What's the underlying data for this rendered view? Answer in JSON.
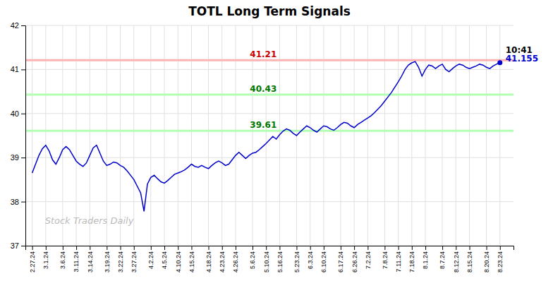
{
  "chart_data": {
    "type": "line",
    "title": "TOTL Long Term Signals",
    "color": "#0000cc",
    "grid": true,
    "ylim": [
      37,
      42
    ],
    "yticks": [
      37,
      38,
      39,
      40,
      41,
      42
    ],
    "watermark": "Stock Traders Daily",
    "reference_lines": [
      {
        "value": 41.21,
        "label": "41.21",
        "color": "#ffb3b3",
        "label_color": "#cc0000"
      },
      {
        "value": 40.43,
        "label": "40.43",
        "color": "#b3ffb3",
        "label_color": "#007700"
      },
      {
        "value": 39.61,
        "label": "39.61",
        "color": "#b3ffb3",
        "label_color": "#007700"
      }
    ],
    "annotations": [
      {
        "text": "10:41",
        "color": "#000000"
      },
      {
        "text": "41.155",
        "color": "#0000cc"
      }
    ],
    "categories": [
      "2.27.24",
      null,
      null,
      null,
      "3.1.24",
      null,
      null,
      null,
      null,
      "3.6.24",
      null,
      null,
      null,
      "3.11.24",
      null,
      null,
      null,
      "3.14.24",
      null,
      null,
      null,
      null,
      "3.19.24",
      null,
      null,
      null,
      "3.22.24",
      null,
      null,
      null,
      "3.27.24",
      null,
      null,
      null,
      null,
      "4.2.24",
      null,
      null,
      null,
      "4.5.24",
      null,
      null,
      null,
      "4.10.24",
      null,
      null,
      null,
      "4.15.24",
      null,
      null,
      null,
      null,
      "4.18.24",
      null,
      null,
      null,
      "4.23.24",
      null,
      null,
      null,
      "4.26.24",
      null,
      null,
      null,
      null,
      "5.6.24",
      null,
      null,
      null,
      "5.10.24",
      null,
      null,
      null,
      "5.16.24",
      null,
      null,
      null,
      null,
      "5.23.24",
      null,
      null,
      null,
      "6.3.24",
      null,
      null,
      null,
      "6.10.24",
      null,
      null,
      null,
      null,
      "6.17.24",
      null,
      null,
      null,
      "6.26.24",
      null,
      null,
      null,
      "7.2.24",
      null,
      null,
      null,
      null,
      "7.8.24",
      null,
      null,
      null,
      "7.11.24",
      null,
      null,
      null,
      "7.18.24",
      null,
      null,
      null,
      "8.1.24",
      null,
      null,
      null,
      null,
      "8.7.24",
      null,
      null,
      null,
      "8.12.24",
      null,
      null,
      null,
      "8.15.24",
      null,
      null,
      null,
      null,
      "8.20.24",
      null,
      null,
      null,
      "8.23.24"
    ],
    "values": [
      38.65,
      38.85,
      39.05,
      39.2,
      39.28,
      39.15,
      38.95,
      38.85,
      39.0,
      39.18,
      39.25,
      39.18,
      39.05,
      38.92,
      38.85,
      38.8,
      38.88,
      39.05,
      39.22,
      39.28,
      39.1,
      38.92,
      38.82,
      38.85,
      38.9,
      38.88,
      38.82,
      38.78,
      38.7,
      38.6,
      38.5,
      38.35,
      38.2,
      37.78,
      38.4,
      38.55,
      38.6,
      38.52,
      38.45,
      38.42,
      38.48,
      38.55,
      38.62,
      38.65,
      38.68,
      38.72,
      38.78,
      38.85,
      38.8,
      38.78,
      38.82,
      38.78,
      38.75,
      38.82,
      38.88,
      38.92,
      38.88,
      38.82,
      38.85,
      38.95,
      39.05,
      39.12,
      39.05,
      38.98,
      39.05,
      39.1,
      39.12,
      39.18,
      39.25,
      39.32,
      39.4,
      39.48,
      39.42,
      39.52,
      39.6,
      39.65,
      39.62,
      39.55,
      39.5,
      39.58,
      39.65,
      39.72,
      39.68,
      39.62,
      39.58,
      39.65,
      39.72,
      39.7,
      39.65,
      39.62,
      39.68,
      39.75,
      39.8,
      39.78,
      39.72,
      39.68,
      39.75,
      39.8,
      39.85,
      39.9,
      39.95,
      40.02,
      40.1,
      40.18,
      40.28,
      40.38,
      40.48,
      40.6,
      40.72,
      40.85,
      41.0,
      41.1,
      41.15,
      41.18,
      41.05,
      40.85,
      41.0,
      41.1,
      41.08,
      41.02,
      41.08,
      41.12,
      41.0,
      40.95,
      41.02,
      41.08,
      41.12,
      41.1,
      41.05,
      41.02,
      41.05,
      41.08,
      41.12,
      41.1,
      41.05,
      41.02,
      41.08,
      41.12,
      41.155
    ]
  }
}
